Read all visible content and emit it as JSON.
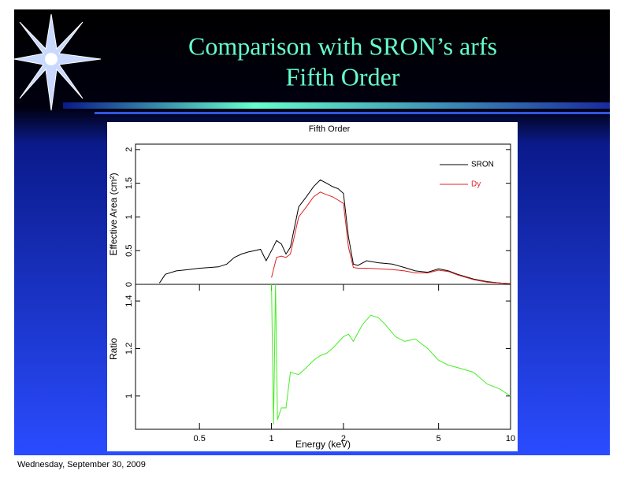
{
  "slide": {
    "title": "Comparison with SRON’s arfs",
    "subtitle": "Fifth Order"
  },
  "footer": "Wednesday, September 30, 2009",
  "chart_data": [
    {
      "type": "line",
      "title": "Fifth Order",
      "ylabel": "Effective Area (cm²)",
      "x": [
        0.34,
        0.36,
        0.4,
        0.45,
        0.5,
        0.55,
        0.6,
        0.65,
        0.7,
        0.75,
        0.8,
        0.85,
        0.9,
        0.95,
        1.0,
        1.05,
        1.1,
        1.15,
        1.2,
        1.3,
        1.4,
        1.5,
        1.6,
        1.7,
        1.8,
        1.9,
        2.0,
        2.1,
        2.2,
        2.3,
        2.5,
        2.8,
        3.2,
        3.6,
        4.0,
        4.5,
        5.0,
        5.5,
        6.0,
        7.0,
        8.0,
        9.0,
        10.0
      ],
      "series": [
        {
          "name": "SRON",
          "color": "#000000",
          "values": [
            0.02,
            0.15,
            0.2,
            0.22,
            0.24,
            0.25,
            0.26,
            0.3,
            0.4,
            0.45,
            0.48,
            0.5,
            0.52,
            0.35,
            0.5,
            0.65,
            0.6,
            0.45,
            0.55,
            1.15,
            1.3,
            1.45,
            1.55,
            1.5,
            1.45,
            1.42,
            1.35,
            0.7,
            0.3,
            0.28,
            0.35,
            0.32,
            0.3,
            0.25,
            0.2,
            0.18,
            0.23,
            0.2,
            0.15,
            0.08,
            0.04,
            0.02,
            0.01
          ]
        },
        {
          "name": "Dy",
          "color": "#e02020",
          "values": [
            null,
            null,
            null,
            null,
            null,
            null,
            null,
            null,
            null,
            null,
            null,
            null,
            null,
            null,
            0.1,
            0.4,
            0.42,
            0.4,
            0.45,
            1.0,
            1.15,
            1.3,
            1.37,
            1.33,
            1.3,
            1.25,
            1.2,
            0.55,
            0.25,
            0.24,
            0.24,
            0.23,
            0.22,
            0.2,
            0.17,
            0.17,
            0.21,
            0.19,
            0.14,
            0.07,
            0.03,
            0.02,
            0.01
          ]
        }
      ],
      "xlim": [
        0.27,
        10
      ],
      "log_x": true,
      "ylim": [
        0,
        2.08
      ],
      "yticks": [
        0,
        0.5,
        1,
        1.5,
        2
      ],
      "legend": "upper right"
    },
    {
      "type": "line",
      "xlabel": "Energy (keV)",
      "ylabel": "Ratio",
      "x": [
        1.0,
        1.02,
        1.04,
        1.06,
        1.1,
        1.15,
        1.2,
        1.3,
        1.4,
        1.5,
        1.6,
        1.7,
        1.8,
        2.0,
        2.1,
        2.2,
        2.4,
        2.6,
        2.8,
        3.0,
        3.3,
        3.6,
        4.0,
        4.5,
        5.0,
        5.5,
        6.0,
        7.0,
        8.0,
        9.0,
        10.0
      ],
      "series": [
        {
          "name": "Ratio",
          "color": "#44ee22",
          "values": [
            1.47,
            0.88,
            1.47,
            0.9,
            0.95,
            0.95,
            1.1,
            1.09,
            1.12,
            1.15,
            1.17,
            1.18,
            1.2,
            1.25,
            1.26,
            1.23,
            1.3,
            1.34,
            1.33,
            1.3,
            1.25,
            1.23,
            1.24,
            1.2,
            1.15,
            1.13,
            1.12,
            1.1,
            1.05,
            1.03,
            1.0
          ]
        }
      ],
      "xlim": [
        0.27,
        10
      ],
      "log_x": true,
      "xticks": [
        0.5,
        1,
        2,
        5,
        10
      ],
      "ylim": [
        0.86,
        1.47
      ],
      "yticks": [
        1,
        1.2,
        1.4
      ]
    }
  ]
}
